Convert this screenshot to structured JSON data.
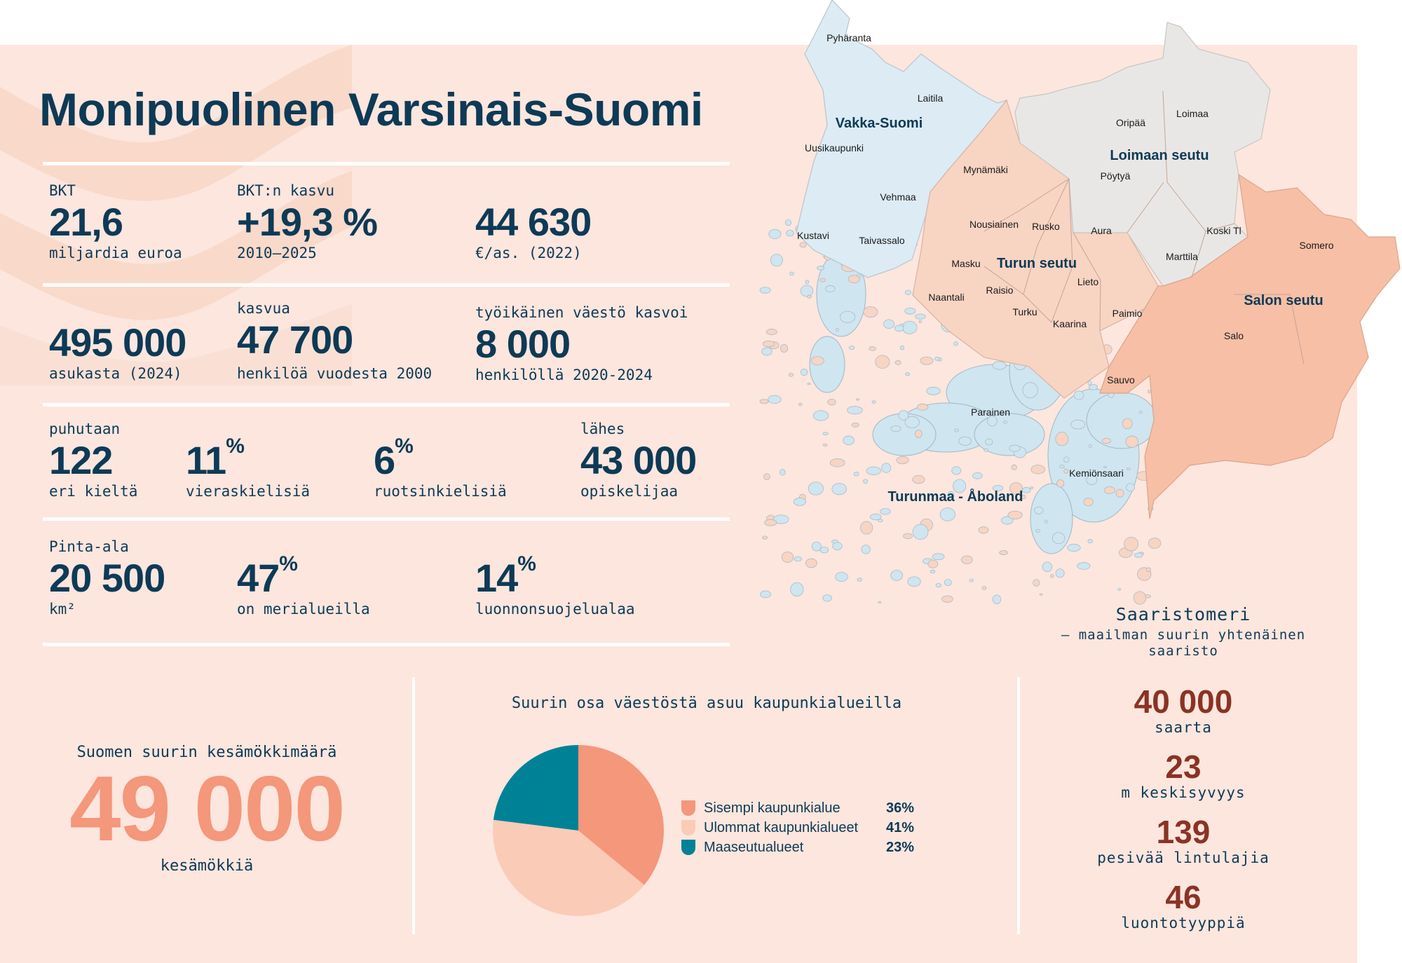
{
  "title": "Monipuolinen Varsinais-Suomi",
  "colors": {
    "background": "#fce6de",
    "navy": "#0d3a56",
    "salmon": "#f4977a",
    "rust": "#8a3324",
    "teal": "#008296",
    "light_peach": "#facbb7"
  },
  "stats": {
    "row1": [
      {
        "label": "BKT",
        "value": "21,6",
        "sub": "miljardia euroa"
      },
      {
        "label": "BKT:n kasvu",
        "value": "+19,3 %",
        "sub": "2010–2025"
      },
      {
        "label": "",
        "value": "44 630",
        "sub": "€/as. (2022)"
      }
    ],
    "row2": [
      {
        "label": "",
        "value": "495 000",
        "sub": "asukasta (2024)"
      },
      {
        "label": "kasvua",
        "value": "47 700",
        "sub": "henkilöä vuodesta 2000"
      },
      {
        "label": "työikäinen väestö kasvoi",
        "value": "8 000",
        "sub": "henkilöllä 2020-2024"
      }
    ],
    "row3": [
      {
        "label": "puhutaan",
        "value": "122",
        "unit": "",
        "sub": "eri kieltä"
      },
      {
        "label": "",
        "value": "11",
        "unit": "%",
        "sub": "vieraskielisiä"
      },
      {
        "label": "",
        "value": "6",
        "unit": "%",
        "sub": "ruotsinkielisiä"
      },
      {
        "label": "lähes",
        "value": "43 000",
        "unit": "",
        "sub": "opiskelijaa"
      }
    ],
    "row4": [
      {
        "label": "Pinta-ala",
        "value": "20 500",
        "unit": "",
        "sub": "km²"
      },
      {
        "label": "",
        "value": "47",
        "unit": "%",
        "sub": "on merialueilla"
      },
      {
        "label": "",
        "value": "14",
        "unit": "%",
        "sub": "luonnonsuojelualaa"
      }
    ]
  },
  "cottages": {
    "heading": "Suomen suurin kesämökkimäärä",
    "value": "49 000",
    "sub": "kesämökkiä"
  },
  "chart_data": {
    "type": "pie",
    "title": "Suurin osa väestöstä asuu kaupunkialueilla",
    "categories": [
      "Sisempi kaupunkialue",
      "Ulommat kaupunkialueet",
      "Maaseutualueet"
    ],
    "values": [
      36,
      41,
      23
    ],
    "labels": [
      "36%",
      "41%",
      "23%"
    ],
    "colors": [
      "#f4977a",
      "#facbb7",
      "#008296"
    ],
    "legend_position": "right"
  },
  "archipelago": {
    "title": "Saaristomeri",
    "subtitle1": "– maailman suurin yhtenäinen",
    "subtitle2": "saaristo",
    "facts": [
      {
        "value": "40 000",
        "sub": "saarta"
      },
      {
        "value": "23",
        "sub": "m keskisyvyys"
      },
      {
        "value": "139",
        "sub": "pesivää lintulajia"
      },
      {
        "value": "46",
        "sub": "luontotyyppiä"
      }
    ]
  },
  "map": {
    "region_colors": {
      "Vakka-Suomi": "#dcebf4",
      "Loimaan seutu": "#e9e7e5",
      "Turun seutu": "#f8d4c3",
      "Salon seutu": "#f6bfa6",
      "Turunmaa - Åboland": "#cfe5f0"
    },
    "regions": [
      "Vakka-Suomi",
      "Loimaan seutu",
      "Turun seutu",
      "Salon seutu",
      "Turunmaa - Åboland"
    ],
    "municipalities": [
      "Pyhäranta",
      "Laitila",
      "Uusikaupunki",
      "Vehmaa",
      "Kustavi",
      "Taivassalo",
      "Mynämäki",
      "Nousiainen",
      "Rusko",
      "Aura",
      "Masku",
      "Lieto",
      "Naantali",
      "Raisio",
      "Turku",
      "Kaarina",
      "Paimio",
      "Oripää",
      "Loimaa",
      "Pöytyä",
      "Koski Tl",
      "Marttila",
      "Somero",
      "Salo",
      "Sauvo",
      "Parainen",
      "Kemiönsaari"
    ]
  }
}
